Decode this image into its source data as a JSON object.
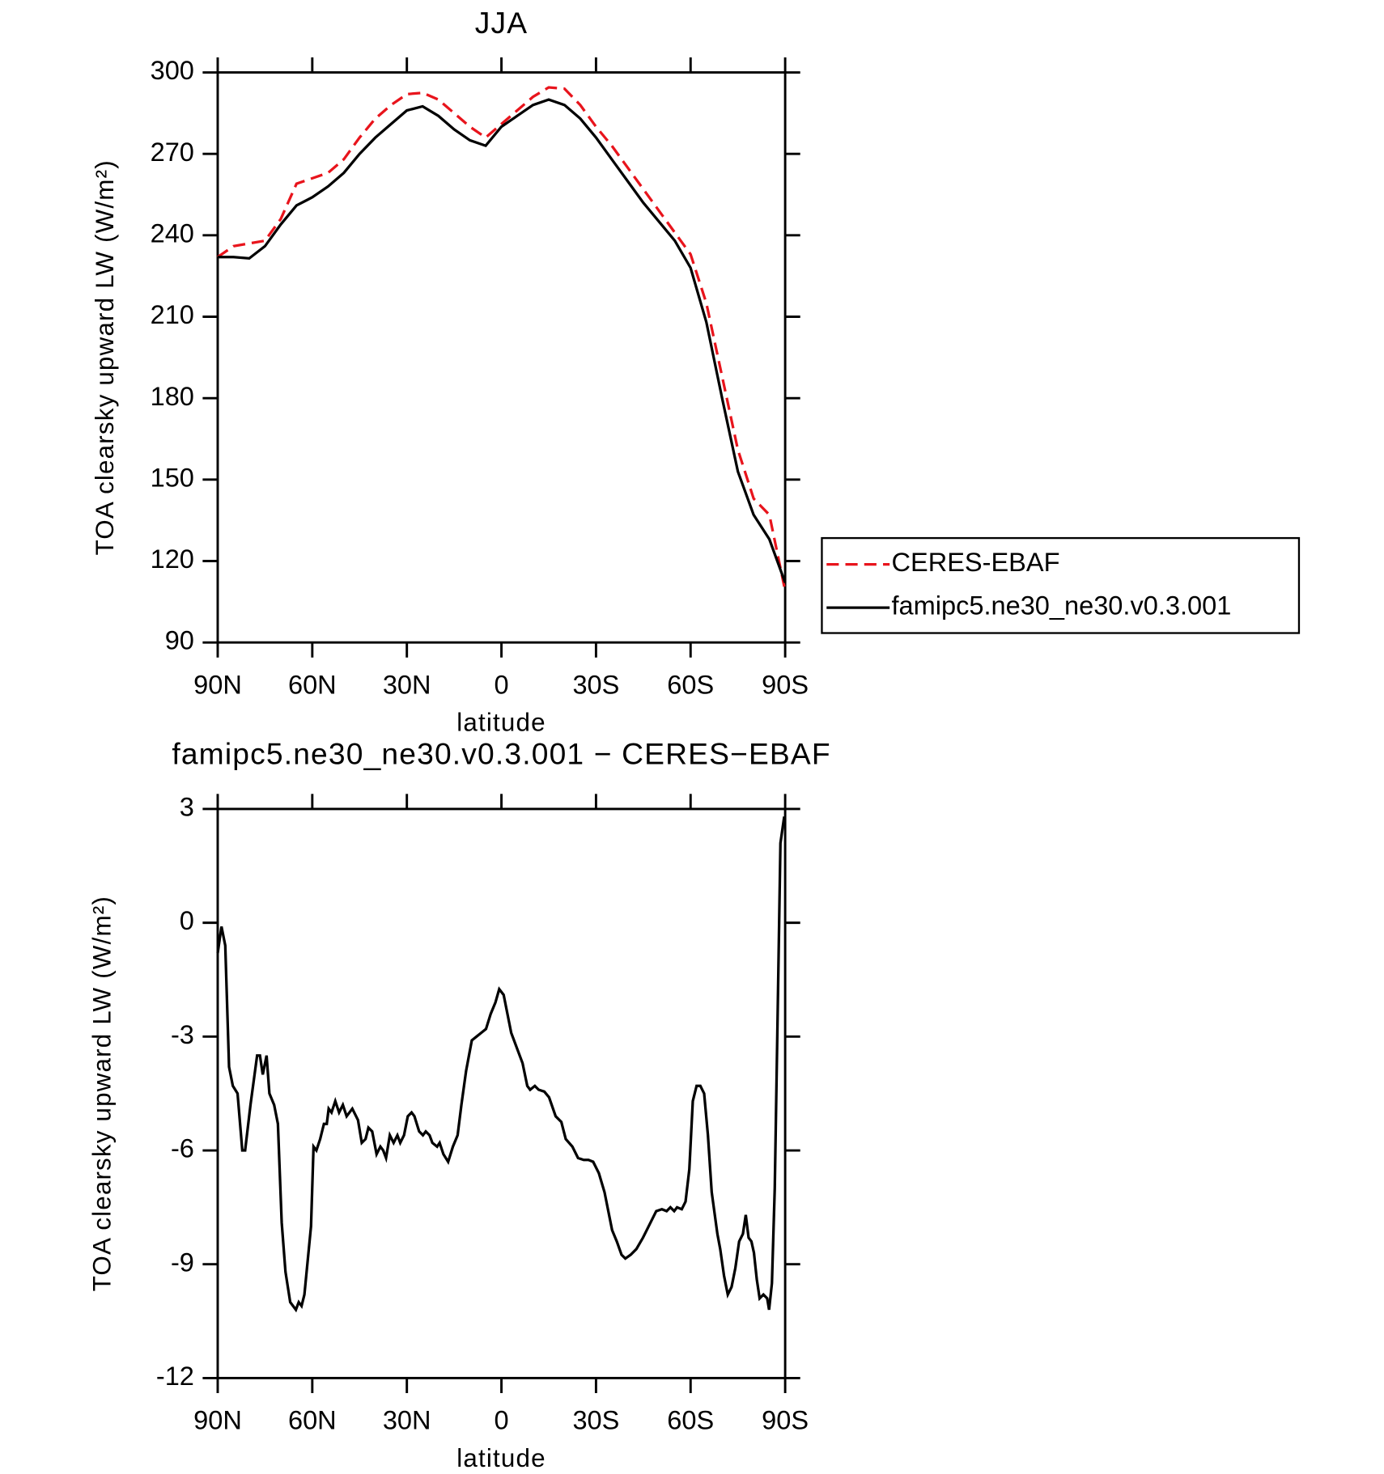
{
  "chart_data": [
    {
      "type": "line",
      "title": "JJA",
      "xlabel": "latitude",
      "ylabel": "TOA clearsky upward LW (W/m²)",
      "x": [
        90,
        85,
        80,
        75,
        70,
        65,
        60,
        55,
        50,
        45,
        40,
        35,
        30,
        25,
        20,
        15,
        10,
        5,
        0,
        -5,
        -10,
        -15,
        -20,
        -25,
        -30,
        -35,
        -40,
        -45,
        -50,
        -55,
        -60,
        -65,
        -70,
        -75,
        -80,
        -85,
        -90
      ],
      "series": [
        {
          "name": "CERES-EBAF",
          "color": "#e8141c",
          "style": "dashed",
          "values": [
            232,
            236,
            237,
            238,
            246,
            259,
            261,
            263,
            268,
            276,
            283,
            288,
            292,
            292.5,
            290,
            285,
            280,
            276,
            281,
            286,
            291,
            294.5,
            294,
            288,
            280,
            273,
            265,
            257,
            249,
            241,
            233,
            215,
            188,
            161,
            143,
            137,
            109
          ]
        },
        {
          "name": "famipc5.ne30_ne30.v0.3.001",
          "color": "#000000",
          "style": "solid",
          "values": [
            232,
            232,
            231.5,
            236,
            244,
            251,
            254,
            258,
            263,
            270,
            276,
            281,
            286,
            287.5,
            284,
            279,
            275,
            273,
            280,
            284,
            288,
            290,
            288,
            283,
            276,
            268,
            260,
            252,
            245,
            238,
            228,
            208,
            180,
            153,
            137,
            128,
            112
          ]
        }
      ],
      "xlim": [
        90,
        -90
      ],
      "xticks": [
        {
          "value": 90,
          "label": "90N"
        },
        {
          "value": 60,
          "label": "60N"
        },
        {
          "value": 30,
          "label": "30N"
        },
        0,
        {
          "value": -30,
          "label": "30S"
        },
        {
          "value": -60,
          "label": "60S"
        },
        {
          "value": -90,
          "label": "90S"
        }
      ],
      "ylim": [
        90,
        300
      ],
      "yticks": [
        90,
        120,
        150,
        180,
        210,
        240,
        270,
        300
      ],
      "legend": "right"
    },
    {
      "type": "line",
      "title": "famipc5.ne30_ne30.v0.3.001 − CERES−EBAF",
      "xlabel": "latitude",
      "ylabel": "TOA clearsky upward LW (W/m²)",
      "x": [
        90,
        88.8,
        87.6,
        86.4,
        85.2,
        83.7,
        82.2,
        81.3,
        79.6,
        77.5,
        76.6,
        75.7,
        74.5,
        73.6,
        72.1,
        70.9,
        69.7,
        68.5,
        67.0,
        65.2,
        64.3,
        63.4,
        62.5,
        60.4,
        59.6,
        58.7,
        57.5,
        56.3,
        55.4,
        54.8,
        53.9,
        52.7,
        51.5,
        50.3,
        49.1,
        47.3,
        45.5,
        44.3,
        43.1,
        42.2,
        41.0,
        39.6,
        38.4,
        37.5,
        36.6,
        35.4,
        34.2,
        33.0,
        32.1,
        30.9,
        29.7,
        28.5,
        27.6,
        26.1,
        24.9,
        24.0,
        22.8,
        21.9,
        20.4,
        19.6,
        18.4,
        16.9,
        15.4,
        13.9,
        12.7,
        11.2,
        9.4,
        7.9,
        6.4,
        4.9,
        3.4,
        1.9,
        0.7,
        -0.7,
        -1.9,
        -3.1,
        -4.9,
        -6.7,
        -8.2,
        -9.1,
        -10.6,
        -11.8,
        -13.6,
        -15.1,
        -17.2,
        -19.0,
        -20.4,
        -22.5,
        -24.3,
        -26.1,
        -27.6,
        -29.1,
        -30.9,
        -32.7,
        -33.9,
        -35.1,
        -36.6,
        -38.1,
        -39.3,
        -41.0,
        -42.8,
        -44.9,
        -46.7,
        -47.9,
        -49.1,
        -50.9,
        -52.4,
        -53.6,
        -54.8,
        -55.7,
        -57.2,
        -58.4,
        -59.6,
        -60.7,
        -61.9,
        -63.1,
        -64.3,
        -65.5,
        -66.7,
        -68.5,
        -69.4,
        -70.6,
        -71.8,
        -73.0,
        -74.2,
        -75.4,
        -76.6,
        -77.5,
        -78.4,
        -79.3,
        -80.1,
        -81.0,
        -81.9,
        -83.1,
        -84.3,
        -84.9,
        -85.8,
        -86.7,
        -87.6,
        -88.5,
        -89.7
      ],
      "series": [
        {
          "color": "#000000",
          "style": "solid",
          "values": [
            -0.8,
            -0.1,
            -0.6,
            -3.8,
            -4.3,
            -4.5,
            -6.0,
            -6.0,
            -4.8,
            -3.5,
            -3.5,
            -4.0,
            -3.5,
            -4.5,
            -4.8,
            -5.3,
            -7.9,
            -9.2,
            -10.0,
            -10.2,
            -10.0,
            -10.1,
            -9.8,
            -8.0,
            -5.9,
            -6.0,
            -5.7,
            -5.3,
            -5.3,
            -4.9,
            -5.0,
            -4.7,
            -5.0,
            -4.8,
            -5.1,
            -4.9,
            -5.2,
            -5.8,
            -5.7,
            -5.4,
            -5.5,
            -6.1,
            -5.9,
            -6.0,
            -6.2,
            -5.6,
            -5.8,
            -5.6,
            -5.8,
            -5.6,
            -5.1,
            -5.0,
            -5.1,
            -5.5,
            -5.6,
            -5.5,
            -5.6,
            -5.8,
            -5.9,
            -5.8,
            -6.1,
            -6.3,
            -5.9,
            -5.6,
            -4.8,
            -3.9,
            -3.1,
            -3.0,
            -2.9,
            -2.8,
            -2.4,
            -2.1,
            -1.75,
            -1.9,
            -2.4,
            -2.9,
            -3.3,
            -3.7,
            -4.3,
            -4.4,
            -4.3,
            -4.4,
            -4.45,
            -4.6,
            -5.1,
            -5.25,
            -5.7,
            -5.9,
            -6.2,
            -6.25,
            -6.25,
            -6.3,
            -6.6,
            -7.1,
            -7.6,
            -8.1,
            -8.4,
            -8.75,
            -8.85,
            -8.75,
            -8.6,
            -8.3,
            -8.0,
            -7.8,
            -7.6,
            -7.55,
            -7.6,
            -7.5,
            -7.6,
            -7.5,
            -7.55,
            -7.35,
            -6.5,
            -4.7,
            -4.3,
            -4.3,
            -4.5,
            -5.6,
            -7.1,
            -8.2,
            -8.6,
            -9.3,
            -9.8,
            -9.6,
            -9.1,
            -8.4,
            -8.2,
            -7.7,
            -8.3,
            -8.4,
            -8.7,
            -9.4,
            -9.9,
            -9.8,
            -9.9,
            -10.2,
            -9.5,
            -7.0,
            -2.5,
            2.1,
            2.8
          ]
        }
      ],
      "xlim": [
        90,
        -90
      ],
      "xticks": [
        {
          "value": 90,
          "label": "90N"
        },
        {
          "value": 60,
          "label": "60N"
        },
        {
          "value": 30,
          "label": "30N"
        },
        0,
        {
          "value": -30,
          "label": "30S"
        },
        {
          "value": -60,
          "label": "60S"
        },
        {
          "value": -90,
          "label": "90S"
        }
      ],
      "ylim": [
        -12,
        3
      ],
      "yticks": [
        -12,
        -9,
        -6,
        -3,
        0,
        3
      ]
    }
  ]
}
